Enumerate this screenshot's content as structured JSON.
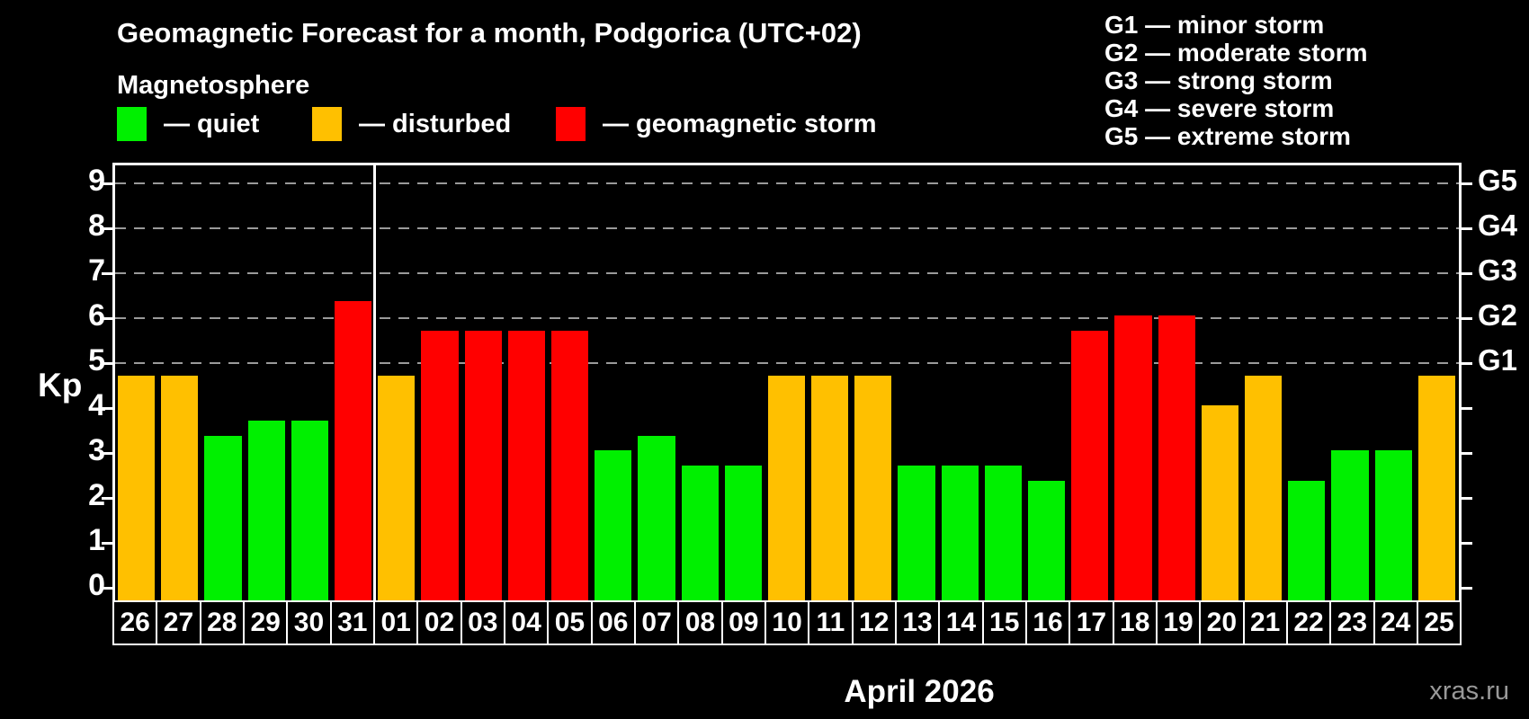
{
  "title": "Geomagnetic Forecast for a month, Podgorica (UTC+02)",
  "subtitle": "Magnetosphere",
  "legend": {
    "quiet_label": "— quiet",
    "disturbed_label": "— disturbed",
    "storm_label": "— geomagnetic storm"
  },
  "g_legend": [
    "G1 — minor storm",
    "G2 — moderate storm",
    "G3 — strong storm",
    "G4 — severe storm",
    "G5 — extreme storm"
  ],
  "colors": {
    "quiet": "#00f000",
    "disturbed": "#ffc000",
    "storm": "#ff0000",
    "grid": "#9a9a9a",
    "axis": "#ffffff",
    "watermark": "#999999",
    "background": "#000000"
  },
  "axes": {
    "y_label": "Kp",
    "y_ticks": [
      0,
      1,
      2,
      3,
      4,
      5,
      6,
      7,
      8,
      9
    ],
    "right_labels": [
      {
        "kp": 5,
        "label": "G1"
      },
      {
        "kp": 6,
        "label": "G2"
      },
      {
        "kp": 7,
        "label": "G3"
      },
      {
        "kp": 8,
        "label": "G4"
      },
      {
        "kp": 9,
        "label": "G5"
      }
    ],
    "x_axis_title": "April 2026"
  },
  "watermark": "xras.ru",
  "chart_data": {
    "type": "bar",
    "title": "Geomagnetic Forecast for a month, Podgorica (UTC+02)",
    "xlabel": "April 2026",
    "ylabel": "Kp",
    "ylim": [
      0,
      9.4
    ],
    "yticks": [
      0,
      1,
      2,
      3,
      4,
      5,
      6,
      7,
      8,
      9
    ],
    "grid": "horizontal dashed lines at Kp 5,6,7,8,9 (G1–G5)",
    "legend_position": "top-left",
    "month_separator_after_index": 5,
    "bars": [
      {
        "date": "26",
        "kp": 4.67,
        "status": "disturbed"
      },
      {
        "date": "27",
        "kp": 4.67,
        "status": "disturbed"
      },
      {
        "date": "28",
        "kp": 3.33,
        "status": "quiet"
      },
      {
        "date": "29",
        "kp": 3.67,
        "status": "quiet"
      },
      {
        "date": "30",
        "kp": 3.67,
        "status": "quiet"
      },
      {
        "date": "31",
        "kp": 6.33,
        "status": "storm"
      },
      {
        "date": "01",
        "kp": 4.67,
        "status": "disturbed"
      },
      {
        "date": "02",
        "kp": 5.67,
        "status": "storm"
      },
      {
        "date": "03",
        "kp": 5.67,
        "status": "storm"
      },
      {
        "date": "04",
        "kp": 5.67,
        "status": "storm"
      },
      {
        "date": "05",
        "kp": 5.67,
        "status": "storm"
      },
      {
        "date": "06",
        "kp": 3.0,
        "status": "quiet"
      },
      {
        "date": "07",
        "kp": 3.33,
        "status": "quiet"
      },
      {
        "date": "08",
        "kp": 2.67,
        "status": "quiet"
      },
      {
        "date": "09",
        "kp": 2.67,
        "status": "quiet"
      },
      {
        "date": "10",
        "kp": 4.67,
        "status": "disturbed"
      },
      {
        "date": "11",
        "kp": 4.67,
        "status": "disturbed"
      },
      {
        "date": "12",
        "kp": 4.67,
        "status": "disturbed"
      },
      {
        "date": "13",
        "kp": 2.67,
        "status": "quiet"
      },
      {
        "date": "14",
        "kp": 2.67,
        "status": "quiet"
      },
      {
        "date": "15",
        "kp": 2.67,
        "status": "quiet"
      },
      {
        "date": "16",
        "kp": 2.33,
        "status": "quiet"
      },
      {
        "date": "17",
        "kp": 5.67,
        "status": "storm"
      },
      {
        "date": "18",
        "kp": 6.0,
        "status": "storm"
      },
      {
        "date": "19",
        "kp": 6.0,
        "status": "storm"
      },
      {
        "date": "20",
        "kp": 4.0,
        "status": "disturbed"
      },
      {
        "date": "21",
        "kp": 4.67,
        "status": "disturbed"
      },
      {
        "date": "22",
        "kp": 2.33,
        "status": "quiet"
      },
      {
        "date": "23",
        "kp": 3.0,
        "status": "quiet"
      },
      {
        "date": "24",
        "kp": 3.0,
        "status": "quiet"
      },
      {
        "date": "25",
        "kp": 4.67,
        "status": "disturbed"
      }
    ]
  }
}
